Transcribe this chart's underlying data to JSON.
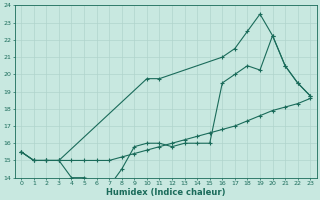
{
  "xlabel": "Humidex (Indice chaleur)",
  "bg_color": "#c8e8e0",
  "grid_color": "#b0d4cc",
  "line_color": "#1a6b5a",
  "xlim": [
    -0.5,
    23.5
  ],
  "ylim": [
    14,
    24
  ],
  "xticks": [
    0,
    1,
    2,
    3,
    4,
    5,
    6,
    7,
    8,
    9,
    10,
    11,
    12,
    13,
    14,
    15,
    16,
    17,
    18,
    19,
    20,
    21,
    22,
    23
  ],
  "yticks": [
    14,
    15,
    16,
    17,
    18,
    19,
    20,
    21,
    22,
    23,
    24
  ],
  "line1_x": [
    0,
    1,
    2,
    3,
    4,
    5,
    6,
    7,
    8,
    9,
    10,
    11,
    12,
    13,
    14,
    15,
    16,
    17,
    18,
    19,
    20,
    21,
    22,
    23
  ],
  "line1_y": [
    15.5,
    15.0,
    15.0,
    15.0,
    15.0,
    15.0,
    15.0,
    15.0,
    15.2,
    15.4,
    15.6,
    15.8,
    16.0,
    16.2,
    16.4,
    16.6,
    16.8,
    17.0,
    17.3,
    17.6,
    17.9,
    18.1,
    18.3,
    18.6
  ],
  "line2_x": [
    0,
    1,
    2,
    3,
    4,
    5,
    6,
    7,
    8,
    9,
    10,
    11,
    12,
    13,
    14,
    15,
    16,
    17,
    18,
    19,
    20,
    21,
    22,
    23
  ],
  "line2_y": [
    15.5,
    15.0,
    15.0,
    15.0,
    14.0,
    14.0,
    13.8,
    13.5,
    14.5,
    15.8,
    16.0,
    16.0,
    15.8,
    16.0,
    16.0,
    16.0,
    19.5,
    20.0,
    20.5,
    20.25,
    22.25,
    20.5,
    19.5,
    18.75
  ],
  "line3_x": [
    0,
    1,
    2,
    3,
    10,
    11,
    16,
    17,
    18,
    19,
    20,
    21,
    22,
    23
  ],
  "line3_y": [
    15.5,
    15.0,
    15.0,
    15.0,
    19.75,
    19.75,
    21.0,
    21.5,
    22.5,
    23.5,
    22.25,
    20.5,
    19.5,
    18.75
  ]
}
